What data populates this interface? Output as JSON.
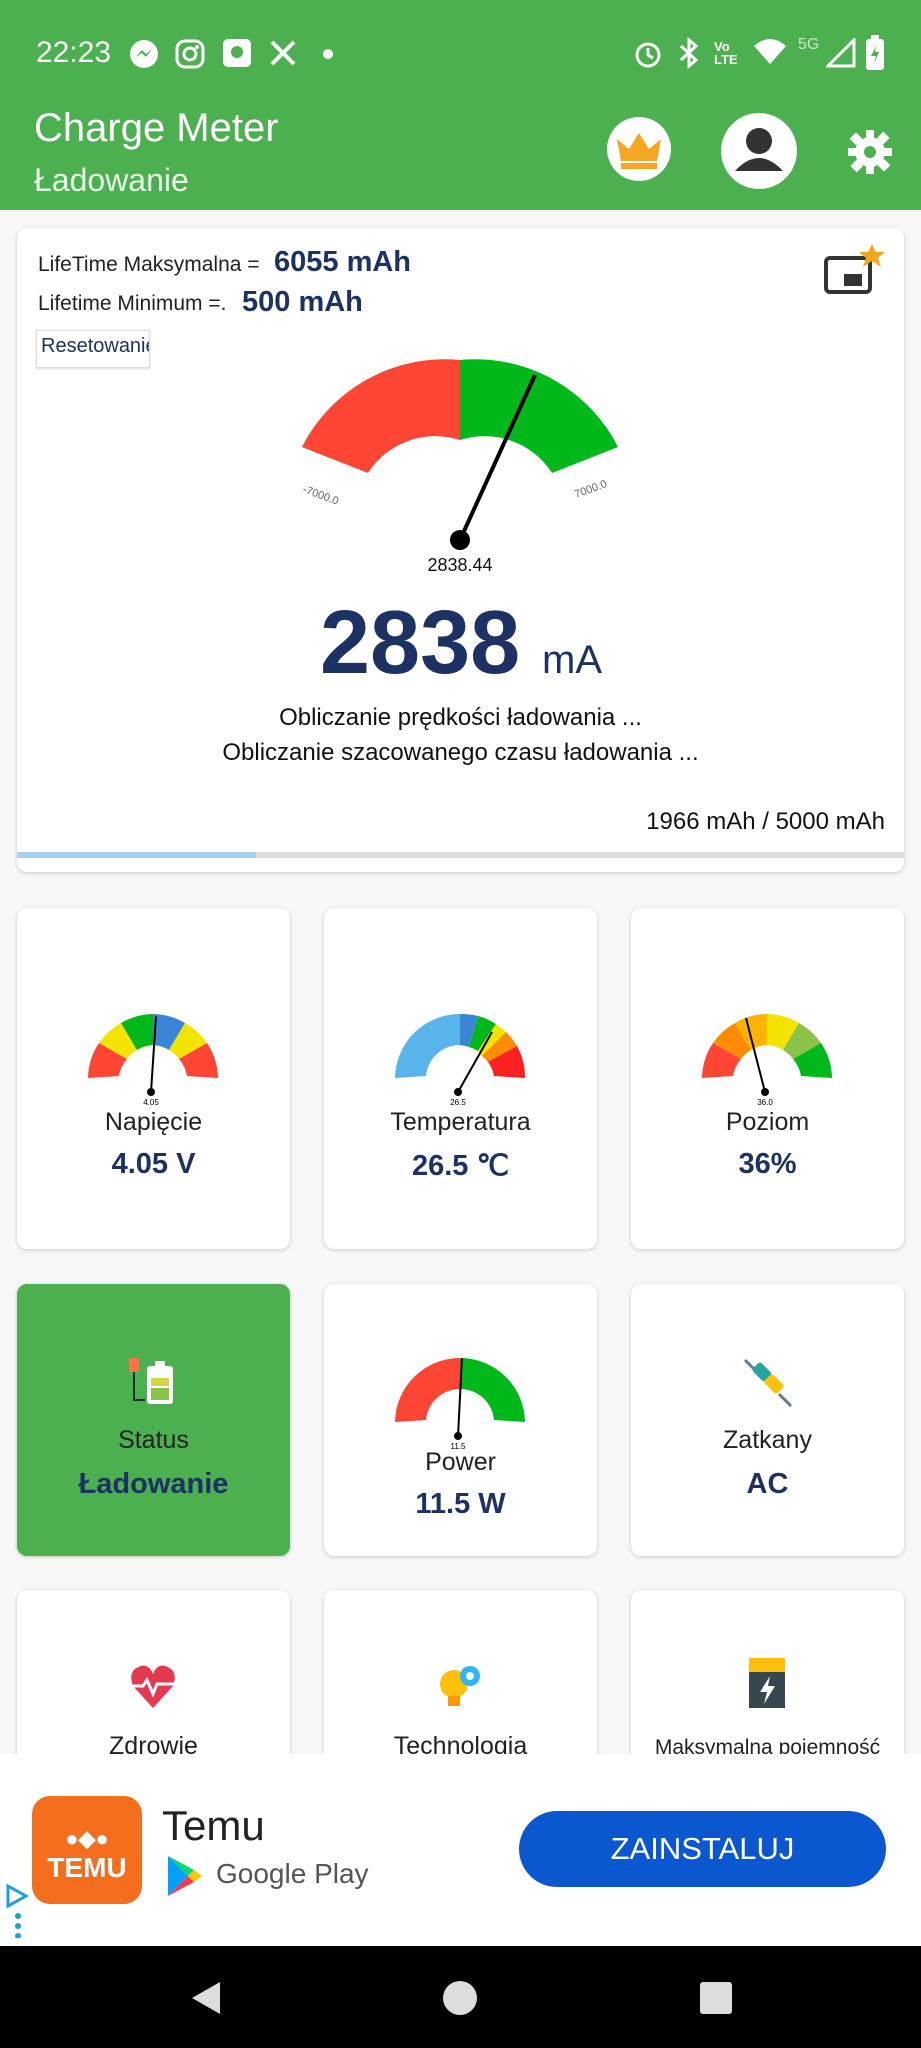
{
  "status_bar": {
    "time": "22:23"
  },
  "app_bar": {
    "title": "Charge Meter",
    "subtitle": "Ładowanie"
  },
  "main": {
    "lifetime_max_label": "LifeTime Maksymalna =",
    "lifetime_max_value": "6055 mAh",
    "lifetime_min_label": "Lifetime Minimum =.",
    "lifetime_min_value": "500 mAh",
    "reset_label": "Resetowanie",
    "gauge_min": "-7000.0",
    "gauge_max": "7000.0",
    "gauge_value": "2838.44",
    "current_value": "2838",
    "current_unit": "mA",
    "calc_speed": "Obliczanie prędkości ładowania ...",
    "calc_time": "Obliczanie szacowanego czasu ładowania ...",
    "capacity": "1966 mAh / 5000 mAh",
    "progress_fraction": 0.27
  },
  "tiles": {
    "voltage": {
      "label": "Napięcie",
      "value": "4.05 V",
      "gauge_value": "4.05"
    },
    "temperature": {
      "label": "Temperatura",
      "value": "26.5 ℃",
      "gauge_value": "26.5"
    },
    "level": {
      "label": "Poziom",
      "value": "36%",
      "gauge_value": "36.0"
    },
    "status": {
      "label": "Status",
      "value": "Ładowanie"
    },
    "power": {
      "label": "Power",
      "value": "11.5 W",
      "gauge_value": "11.5"
    },
    "plugged": {
      "label": "Zatkany",
      "value": "AC"
    },
    "health": {
      "label": "Zdrowie"
    },
    "technology": {
      "label": "Technologia"
    },
    "max_capacity": {
      "label": "Maksymalna pojemność"
    }
  },
  "ad": {
    "app_name": "Temu",
    "logo_text": "TEMU",
    "store": "Google Play",
    "install_label": "ZAINSTALUJ"
  },
  "colors": {
    "primary": "#4caf50",
    "value_text": "#1e3163",
    "install_button": "#0b57d0",
    "gauge_red": "#ff4533",
    "gauge_green": "#00b81a"
  }
}
